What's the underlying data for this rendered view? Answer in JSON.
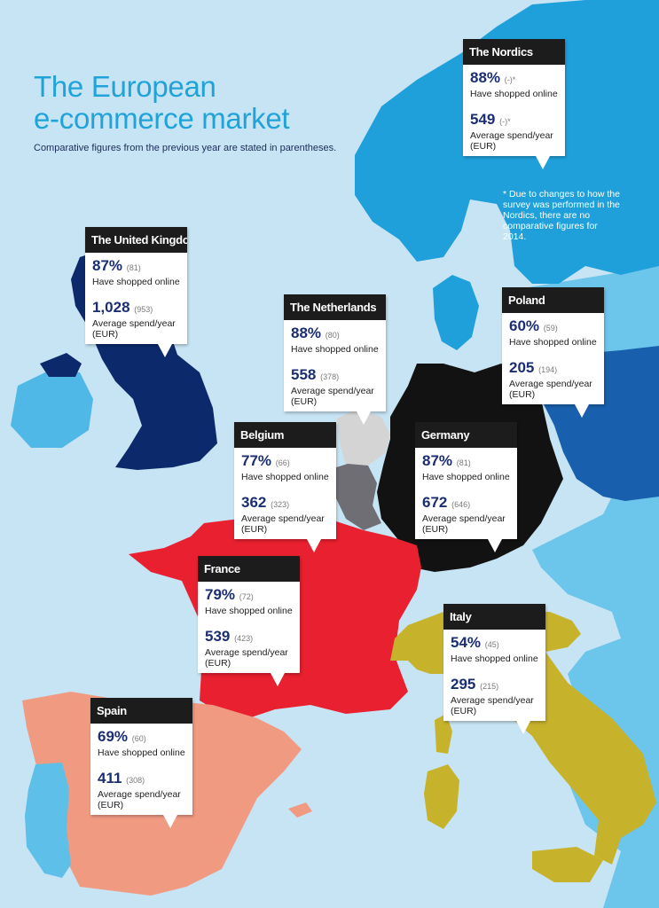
{
  "title_line1": "The European",
  "title_line2": "e-commerce market",
  "subtitle": "Comparative figures from the previous year are stated in parentheses.",
  "footnote": "* Due to changes to how the survey was performed in the Nordics, there are no comparative figures for 2014.",
  "colors": {
    "sea": "#c7e4f4",
    "title": "#1fa3d9",
    "nordics": "#1fa0db",
    "uk": "#0c2a6b",
    "ireland": "#4fb8e6",
    "netherlands": "#d4d4d4",
    "belgium": "#6e6e74",
    "germany": "#121212",
    "poland": "#1860ad",
    "france": "#e8202f",
    "spain": "#f19a82",
    "portugal": "#5ec0e8",
    "italy": "#c7b22c",
    "other_land": "#6cc5ea",
    "number": "#1b2e72"
  },
  "labels": {
    "have_shopped": "Have shopped online",
    "avg_spend_line1": "Average spend/year",
    "avg_spend_line2": "(EUR)"
  },
  "countries": {
    "nordics": {
      "name": "The Nordics",
      "shopped_pct": "88%",
      "shopped_prev": "(-)*",
      "spend": "549",
      "spend_prev": "(-)*"
    },
    "uk": {
      "name": "The United Kingdom",
      "shopped_pct": "87%",
      "shopped_prev": "(81)",
      "spend": "1,028",
      "spend_prev": "(953)"
    },
    "netherlands": {
      "name": "The Netherlands",
      "shopped_pct": "88%",
      "shopped_prev": "(80)",
      "spend": "558",
      "spend_prev": "(378)"
    },
    "poland": {
      "name": "Poland",
      "shopped_pct": "60%",
      "shopped_prev": "(59)",
      "spend": "205",
      "spend_prev": "(194)"
    },
    "belgium": {
      "name": "Belgium",
      "shopped_pct": "77%",
      "shopped_prev": "(66)",
      "spend": "362",
      "spend_prev": "(323)"
    },
    "germany": {
      "name": "Germany",
      "shopped_pct": "87%",
      "shopped_prev": "(81)",
      "spend": "672",
      "spend_prev": "(646)"
    },
    "france": {
      "name": "France",
      "shopped_pct": "79%",
      "shopped_prev": "(72)",
      "spend": "539",
      "spend_prev": "(423)"
    },
    "italy": {
      "name": "Italy",
      "shopped_pct": "54%",
      "shopped_prev": "(45)",
      "spend": "295",
      "spend_prev": "(215)"
    },
    "spain": {
      "name": "Spain",
      "shopped_pct": "69%",
      "shopped_prev": "(60)",
      "spend": "411",
      "spend_prev": "(308)"
    }
  }
}
